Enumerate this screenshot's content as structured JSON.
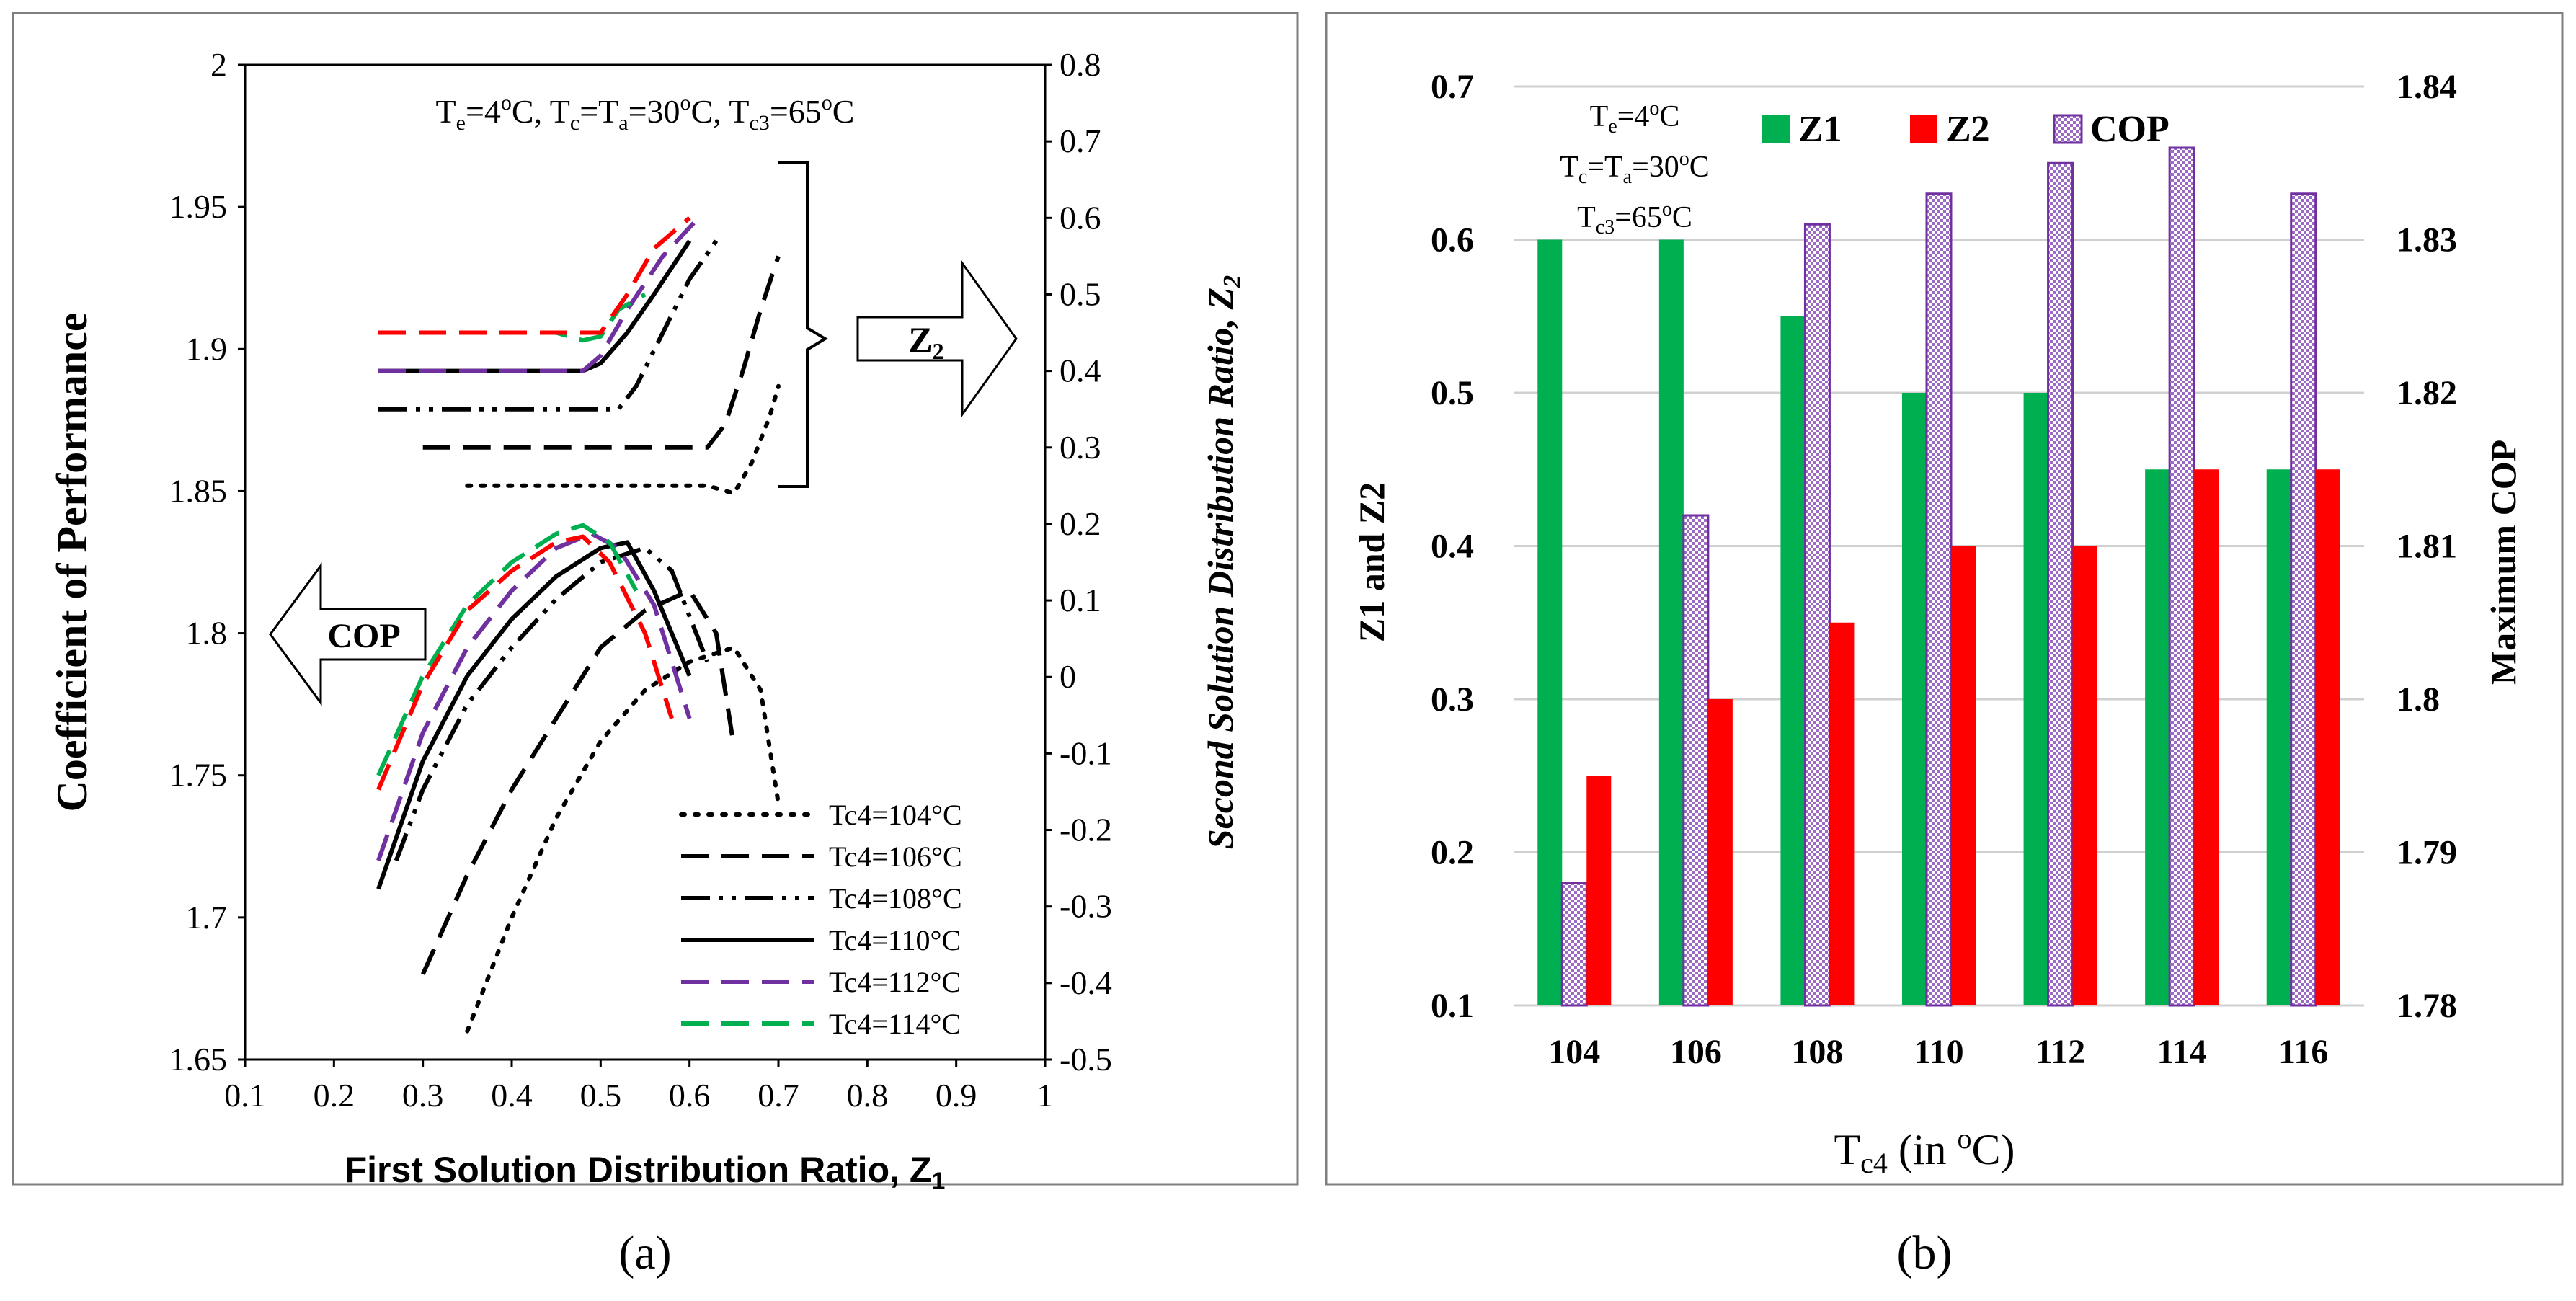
{
  "chart_data": [
    {
      "type": "line",
      "panel_label": "(a)",
      "xlabel": "First Solution Distribution Ratio, Z",
      "xlabel_sub": "1",
      "ylabel": "Coefficient of Performance",
      "y2label": "Second Solution Distribution Ratio, Z",
      "y2label_sub": "2",
      "xlim": [
        0.1,
        1
      ],
      "ylim": [
        1.65,
        2
      ],
      "y2lim": [
        -0.5,
        0.8
      ],
      "xticks": [
        "0.1",
        "0.2",
        "0.3",
        "0.4",
        "0.5",
        "0.6",
        "0.7",
        "0.8",
        "0.9",
        "1"
      ],
      "yticks": [
        "1.65",
        "1.7",
        "1.75",
        "1.8",
        "1.85",
        "1.9",
        "1.95",
        "2"
      ],
      "y2ticks": [
        "-0.5",
        "-0.4",
        "-0.3",
        "-0.2",
        "-0.1",
        "0",
        "0.1",
        "0.2",
        "0.3",
        "0.4",
        "0.5",
        "0.6",
        "0.7",
        "0.8"
      ],
      "conditions": {
        "t1": "T",
        "s1": "e",
        "t2": "=4",
        "p1": "o",
        "t3": "C, T",
        "s2": "c",
        "t4": "=T",
        "s3": "a",
        "t5": "=30",
        "p2": "o",
        "t6": "C, T",
        "s4": "c3",
        "t7": "=65",
        "p3": "o",
        "t8": "C"
      },
      "arrow_z2": "Z",
      "arrow_z2_sub": "2",
      "arrow_cop": "COP",
      "series": [
        {
          "name": "Tc4=104°C",
          "color": "#000000",
          "dash": "dot",
          "cop": [
            [
              0.35,
              1.66
            ],
            [
              0.4,
              1.7
            ],
            [
              0.45,
              1.735
            ],
            [
              0.5,
              1.762
            ],
            [
              0.55,
              1.78
            ],
            [
              0.6,
              1.79
            ],
            [
              0.65,
              1.795
            ],
            [
              0.68,
              1.78
            ],
            [
              0.7,
              1.74
            ]
          ],
          "z2": [
            [
              0.35,
              0.25
            ],
            [
              0.45,
              0.25
            ],
            [
              0.55,
              0.25
            ],
            [
              0.62,
              0.25
            ],
            [
              0.65,
              0.24
            ],
            [
              0.67,
              0.28
            ],
            [
              0.69,
              0.34
            ],
            [
              0.7,
              0.38
            ]
          ]
        },
        {
          "name": "Tc4=106°C",
          "color": "#000000",
          "dash": "long",
          "cop": [
            [
              0.3,
              1.68
            ],
            [
              0.35,
              1.715
            ],
            [
              0.4,
              1.745
            ],
            [
              0.45,
              1.77
            ],
            [
              0.5,
              1.795
            ],
            [
              0.55,
              1.808
            ],
            [
              0.6,
              1.815
            ],
            [
              0.63,
              1.8
            ],
            [
              0.65,
              1.76
            ]
          ],
          "z2": [
            [
              0.3,
              0.3
            ],
            [
              0.4,
              0.3
            ],
            [
              0.5,
              0.3
            ],
            [
              0.6,
              0.3
            ],
            [
              0.62,
              0.3
            ],
            [
              0.64,
              0.33
            ],
            [
              0.66,
              0.4
            ],
            [
              0.68,
              0.48
            ],
            [
              0.7,
              0.55
            ]
          ]
        },
        {
          "name": "Tc4=108°C",
          "color": "#000000",
          "dash": "dashdotdot",
          "cop": [
            [
              0.27,
              1.72
            ],
            [
              0.3,
              1.745
            ],
            [
              0.35,
              1.775
            ],
            [
              0.4,
              1.795
            ],
            [
              0.45,
              1.812
            ],
            [
              0.5,
              1.825
            ],
            [
              0.55,
              1.83
            ],
            [
              0.58,
              1.822
            ],
            [
              0.62,
              1.79
            ]
          ],
          "z2": [
            [
              0.25,
              0.35
            ],
            [
              0.35,
              0.35
            ],
            [
              0.45,
              0.35
            ],
            [
              0.52,
              0.35
            ],
            [
              0.54,
              0.38
            ],
            [
              0.57,
              0.45
            ],
            [
              0.6,
              0.52
            ],
            [
              0.63,
              0.57
            ]
          ]
        },
        {
          "name": "Tc4=110°C",
          "color": "#000000",
          "dash": "solid",
          "cop": [
            [
              0.25,
              1.71
            ],
            [
              0.3,
              1.755
            ],
            [
              0.35,
              1.785
            ],
            [
              0.4,
              1.805
            ],
            [
              0.45,
              1.82
            ],
            [
              0.5,
              1.83
            ],
            [
              0.53,
              1.832
            ],
            [
              0.56,
              1.815
            ],
            [
              0.6,
              1.785
            ]
          ],
          "z2": [
            [
              0.25,
              0.4
            ],
            [
              0.35,
              0.4
            ],
            [
              0.45,
              0.4
            ],
            [
              0.48,
              0.4
            ],
            [
              0.5,
              0.41
            ],
            [
              0.53,
              0.45
            ],
            [
              0.56,
              0.5
            ],
            [
              0.6,
              0.57
            ]
          ]
        },
        {
          "name": "Tc4=112°C",
          "color": "#7030A0",
          "dash": "long",
          "cop": [
            [
              0.25,
              1.72
            ],
            [
              0.3,
              1.765
            ],
            [
              0.35,
              1.795
            ],
            [
              0.4,
              1.815
            ],
            [
              0.45,
              1.83
            ],
            [
              0.49,
              1.835
            ],
            [
              0.52,
              1.83
            ],
            [
              0.56,
              1.81
            ],
            [
              0.6,
              1.77
            ]
          ],
          "z2": [
            [
              0.25,
              0.4
            ],
            [
              0.35,
              0.4
            ],
            [
              0.45,
              0.4
            ],
            [
              0.48,
              0.4
            ],
            [
              0.5,
              0.42
            ],
            [
              0.53,
              0.48
            ],
            [
              0.57,
              0.55
            ],
            [
              0.61,
              0.6
            ]
          ]
        },
        {
          "name": "Tc4=114°C",
          "color": "#00B050",
          "dash": "long",
          "cop": [
            [
              0.25,
              1.75
            ],
            [
              0.3,
              1.785
            ],
            [
              0.35,
              1.81
            ],
            [
              0.4,
              1.825
            ],
            [
              0.45,
              1.835
            ],
            [
              0.48,
              1.838
            ],
            [
              0.51,
              1.832
            ],
            [
              0.54,
              1.815
            ]
          ],
          "z2": [
            [
              0.25,
              0.45
            ],
            [
              0.35,
              0.45
            ],
            [
              0.45,
              0.45
            ],
            [
              0.48,
              0.44
            ],
            [
              0.5,
              0.445
            ],
            [
              0.52,
              0.48
            ],
            [
              0.55,
              0.5
            ]
          ]
        },
        {
          "name": "",
          "color": "#FF0000",
          "dash": "long",
          "cop": [
            [
              0.25,
              1.745
            ],
            [
              0.3,
              1.782
            ],
            [
              0.35,
              1.808
            ],
            [
              0.4,
              1.822
            ],
            [
              0.45,
              1.832
            ],
            [
              0.48,
              1.834
            ],
            [
              0.51,
              1.825
            ],
            [
              0.55,
              1.8
            ],
            [
              0.58,
              1.77
            ]
          ],
          "z2": [
            [
              0.25,
              0.45
            ],
            [
              0.35,
              0.45
            ],
            [
              0.45,
              0.45
            ],
            [
              0.5,
              0.45
            ],
            [
              0.53,
              0.5
            ],
            [
              0.56,
              0.56
            ],
            [
              0.6,
              0.6
            ]
          ]
        }
      ]
    },
    {
      "type": "bar",
      "panel_label": "(b)",
      "xlabel": "T",
      "xlabel_sub": "c4",
      "xlabel_rest": " (in ",
      "xlabel_sup": "o",
      "xlabel_end": "C)",
      "ylabel": "Z1 and Z2",
      "y2label": "Maximum COP",
      "categories": [
        "104",
        "106",
        "108",
        "110",
        "112",
        "114",
        "116"
      ],
      "ylim": [
        0.1,
        0.7
      ],
      "y2lim": [
        1.78,
        1.84
      ],
      "yticks": [
        "0.1",
        "0.2",
        "0.3",
        "0.4",
        "0.5",
        "0.6",
        "0.7"
      ],
      "y2ticks": [
        "1.78",
        "1.79",
        "1.8",
        "1.81",
        "1.82",
        "1.83",
        "1.84"
      ],
      "conditions": {
        "l1a": "T",
        "l1s": "e",
        "l1b": "=4",
        "l1p": "o",
        "l1c": "C",
        "l2a": "T",
        "l2s": "c",
        "l2b": "=T",
        "l2s2": "a",
        "l2c": "=30",
        "l2p": "o",
        "l2d": "C",
        "l3a": "T",
        "l3s": "c3",
        "l3b": "=65",
        "l3p": "o",
        "l3c": "C"
      },
      "series": [
        {
          "name": "Z1",
          "color": "#00B050",
          "axis": "left",
          "values": [
            0.6,
            0.6,
            0.55,
            0.5,
            0.5,
            0.45,
            0.45
          ]
        },
        {
          "name": "COP",
          "color": "#7030A0",
          "axis": "right",
          "pattern": "checker",
          "values": [
            1.788,
            1.812,
            1.831,
            1.833,
            1.835,
            1.836,
            1.833
          ]
        },
        {
          "name": "Z2",
          "color": "#FF0000",
          "axis": "left",
          "values": [
            0.25,
            0.3,
            0.35,
            0.4,
            0.4,
            0.45,
            0.45
          ]
        }
      ]
    }
  ]
}
